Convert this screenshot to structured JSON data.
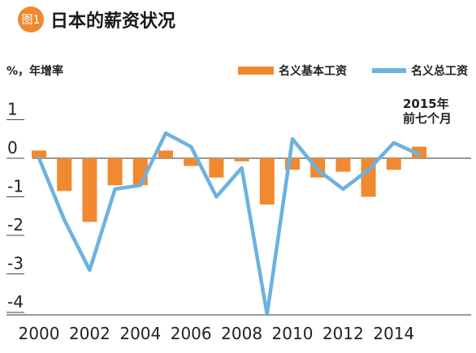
{
  "header": {
    "badge": "图1",
    "title": "日本的薪资状况"
  },
  "chart_data": {
    "type": "bar+line",
    "ylabel": "%，年增率",
    "ylim": [
      -4.2,
      1.6
    ],
    "yticks": [
      {
        "value": 1,
        "label": "1"
      },
      {
        "value": 0,
        "label": "0"
      },
      {
        "value": -1,
        "label": "-1"
      },
      {
        "value": -2,
        "label": "-2"
      },
      {
        "value": -3,
        "label": "-3"
      },
      {
        "value": -4,
        "label": "-4"
      }
    ],
    "x": [
      2000,
      2001,
      2002,
      2003,
      2004,
      2005,
      2006,
      2007,
      2008,
      2009,
      2010,
      2011,
      2012,
      2013,
      2014,
      2015
    ],
    "xticks": [
      2000,
      2002,
      2004,
      2006,
      2008,
      2010,
      2012,
      2014
    ],
    "series": [
      {
        "name": "名义基本工资",
        "type": "bar",
        "color": "#f0892f",
        "values": [
          0.2,
          -0.85,
          -1.65,
          -0.7,
          -0.7,
          0.2,
          -0.2,
          -0.5,
          -0.08,
          -1.2,
          -0.3,
          -0.5,
          -0.35,
          -1.0,
          -0.3,
          0.3
        ]
      },
      {
        "name": "名义总工资",
        "type": "line",
        "color": "#6cb2e0",
        "values": [
          0.0,
          -1.6,
          -2.9,
          -0.8,
          -0.7,
          0.65,
          0.3,
          -1.0,
          -0.25,
          -4.05,
          0.5,
          -0.3,
          -0.8,
          -0.3,
          0.4,
          0.1
        ]
      }
    ],
    "annotation": {
      "line1": "2015年",
      "line2": "前七个月"
    },
    "legend_position": "top-right"
  }
}
